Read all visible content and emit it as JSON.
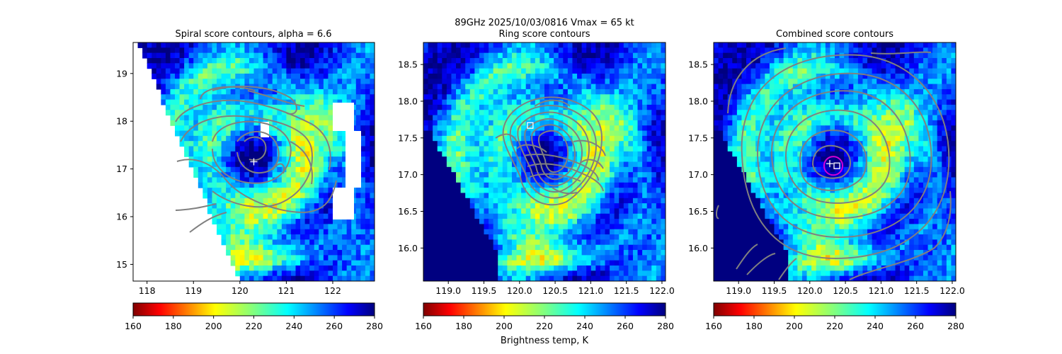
{
  "figure": {
    "suptitle_line1": "89GHz  2025/10/03/0816    Vmax = 65 kt",
    "colorbar_label": "Brightness temp, K"
  },
  "colors": {
    "contour": "#808080",
    "marker": "#ffffff",
    "circle": "#d400d4"
  },
  "chart_data": [
    {
      "type": "heatmap",
      "title": "Spiral score contours, alpha =  6.6",
      "colormap": "jet_r",
      "clim": [
        160,
        280
      ],
      "xlim": [
        117.7,
        122.9
      ],
      "ylim": [
        14.65,
        19.65
      ],
      "xticks": [
        118,
        119,
        120,
        121,
        122
      ],
      "xtick_labels": [
        "118",
        "119",
        "120",
        "121",
        "122"
      ],
      "yticks": [
        15,
        16,
        17,
        18,
        19
      ],
      "ytick_labels": [
        "15",
        "16",
        "17",
        "18",
        "19"
      ],
      "center_marker": {
        "shape": "plus",
        "x": 120.3,
        "y": 17.15
      },
      "colorbar_ticks": [
        "160",
        "180",
        "200",
        "220",
        "240",
        "260",
        "280"
      ]
    },
    {
      "type": "heatmap",
      "title": "Ring score contours",
      "colormap": "jet_r",
      "clim": [
        160,
        280
      ],
      "xlim": [
        118.65,
        122.05
      ],
      "ylim": [
        15.55,
        18.8
      ],
      "xticks": [
        119.0,
        119.5,
        120.0,
        120.5,
        121.0,
        121.5,
        122.0
      ],
      "xtick_labels": [
        "119.0",
        "119.5",
        "120.0",
        "120.5",
        "121.0",
        "121.5",
        "122.0"
      ],
      "yticks": [
        16.0,
        16.5,
        17.0,
        17.5,
        18.0,
        18.5
      ],
      "ytick_labels": [
        "16.0",
        "16.5",
        "17.0",
        "17.5",
        "18.0",
        "18.5"
      ],
      "center_marker": {
        "shape": "square",
        "x": 120.15,
        "y": 17.67
      },
      "colorbar_ticks": [
        "160",
        "180",
        "200",
        "220",
        "240",
        "260",
        "280"
      ]
    },
    {
      "type": "heatmap",
      "title": "Combined score contours",
      "colormap": "jet_r",
      "clim": [
        160,
        280
      ],
      "xlim": [
        118.65,
        122.05
      ],
      "ylim": [
        15.55,
        18.8
      ],
      "xticks": [
        119.0,
        119.5,
        120.0,
        120.5,
        121.0,
        121.5,
        122.0
      ],
      "xtick_labels": [
        "119.0",
        "119.5",
        "120.0",
        "120.5",
        "121.0",
        "121.5",
        "122.0"
      ],
      "yticks": [
        16.0,
        16.5,
        17.0,
        17.5,
        18.0,
        18.5
      ],
      "ytick_labels": [
        "16.0",
        "16.5",
        "17.0",
        "17.5",
        "18.0",
        "18.5"
      ],
      "center_marker": {
        "shape": "square",
        "x": 120.38,
        "y": 17.12
      },
      "secondary_marker": {
        "shape": "plus",
        "x": 120.28,
        "y": 17.15
      },
      "ring": {
        "x": 120.33,
        "y": 17.12,
        "radius_deg": 0.13
      },
      "colorbar_ticks": [
        "160",
        "180",
        "200",
        "220",
        "240",
        "260",
        "280"
      ]
    }
  ]
}
